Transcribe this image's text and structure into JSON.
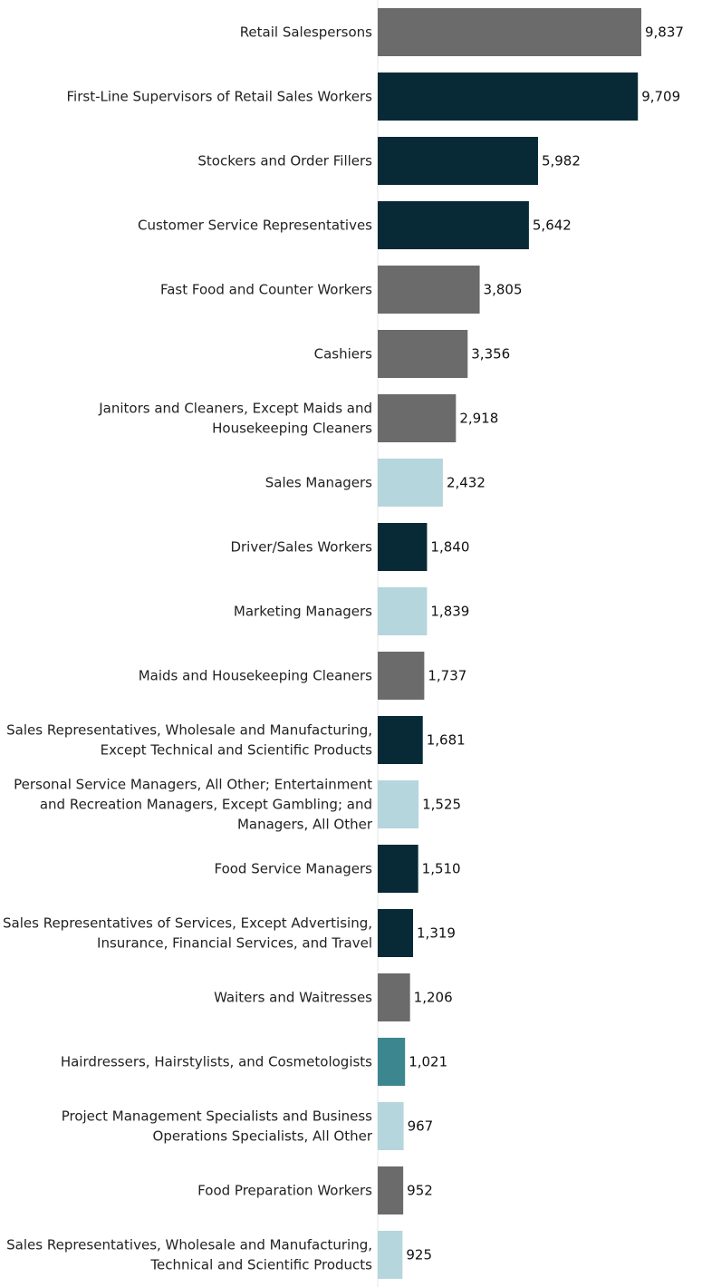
{
  "chart_data": {
    "type": "bar",
    "orientation": "horizontal",
    "categories": [
      [
        "Retail Salespersons"
      ],
      [
        "First-Line Supervisors of Retail Sales Workers"
      ],
      [
        "Stockers and Order Fillers"
      ],
      [
        "Customer Service Representatives"
      ],
      [
        "Fast Food and Counter Workers"
      ],
      [
        "Cashiers"
      ],
      [
        "Janitors and Cleaners, Except Maids and",
        "Housekeeping Cleaners"
      ],
      [
        "Sales Managers"
      ],
      [
        "Driver/Sales Workers"
      ],
      [
        "Marketing Managers"
      ],
      [
        "Maids and Housekeeping Cleaners"
      ],
      [
        "Sales Representatives, Wholesale and Manufacturing,",
        "Except Technical and Scientific Products"
      ],
      [
        "Personal Service Managers, All Other; Entertainment",
        "and Recreation Managers, Except Gambling; and",
        "Managers, All Other"
      ],
      [
        "Food Service Managers"
      ],
      [
        "Sales Representatives of Services, Except Advertising,",
        "Insurance, Financial Services, and Travel"
      ],
      [
        "Waiters and Waitresses"
      ],
      [
        "Hairdressers, Hairstylists, and Cosmetologists"
      ],
      [
        "Project Management Specialists and Business",
        "Operations Specialists, All Other"
      ],
      [
        "Food Preparation Workers"
      ],
      [
        "Sales Representatives, Wholesale and Manufacturing,",
        "Technical and Scientific Products"
      ]
    ],
    "values": [
      9837,
      9709,
      5982,
      5642,
      3805,
      3356,
      2918,
      2432,
      1840,
      1839,
      1737,
      1681,
      1525,
      1510,
      1319,
      1206,
      1021,
      967,
      952,
      925
    ],
    "value_labels": [
      "9,837",
      "9,709",
      "5,982",
      "5,642",
      "3,805",
      "3,356",
      "2,918",
      "2,432",
      "1,840",
      "1,839",
      "1,737",
      "1,681",
      "1,525",
      "1,510",
      "1,319",
      "1,206",
      "1,021",
      "967",
      "952",
      "925"
    ],
    "bar_colors": [
      "#6b6b6b",
      "#072a36",
      "#072a36",
      "#072a36",
      "#6b6b6b",
      "#6b6b6b",
      "#6b6b6b",
      "#b5d6dc",
      "#072a36",
      "#b5d6dc",
      "#6b6b6b",
      "#072a36",
      "#b5d6dc",
      "#072a36",
      "#072a36",
      "#6b6b6b",
      "#3c8690",
      "#b5d6dc",
      "#6b6b6b",
      "#b5d6dc"
    ],
    "xlim": [
      0,
      9837
    ],
    "grid": false,
    "legend": "none"
  }
}
